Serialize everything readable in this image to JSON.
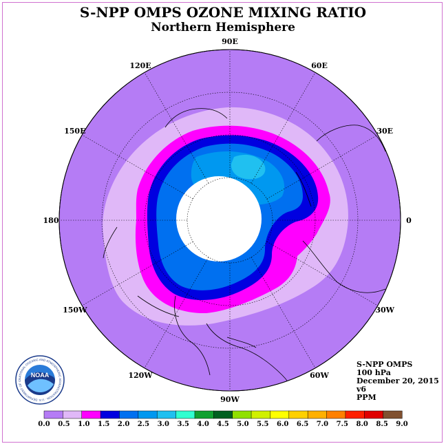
{
  "title": "S-NPP OMPS OZONE MIXING RATIO",
  "subtitle": "Northern Hemisphere",
  "longitude_labels": [
    {
      "text": "90E",
      "lon": 90
    },
    {
      "text": "60E",
      "lon": 60
    },
    {
      "text": "30E",
      "lon": 30
    },
    {
      "text": "0",
      "lon": 0
    },
    {
      "text": "30W",
      "lon": -30
    },
    {
      "text": "60W",
      "lon": -60
    },
    {
      "text": "90W",
      "lon": -90
    },
    {
      "text": "120W",
      "lon": -120
    },
    {
      "text": "150W",
      "lon": -150
    },
    {
      "text": "180",
      "lon": 180
    },
    {
      "text": "150E",
      "lon": 150
    },
    {
      "text": "120E",
      "lon": 120
    }
  ],
  "info": {
    "instrument": "S-NPP OMPS",
    "level": "100 hPa",
    "date": "December 20, 2015",
    "version": "v6",
    "units": "PPM"
  },
  "colorbar": {
    "labels": [
      "0.0",
      "0.5",
      "1.0",
      "1.5",
      "2.0",
      "2.5",
      "3.0",
      "3.5",
      "4.0",
      "4.5",
      "5.0",
      "5.5",
      "6.0",
      "6.5",
      "7.0",
      "7.5",
      "8.0",
      "8.5",
      "9.0"
    ],
    "colors": [
      "#b57cf5",
      "#e0b8f8",
      "#ff00ff",
      "#0000e0",
      "#0070f0",
      "#0098f0",
      "#20c0f0",
      "#30ffd0",
      "#10a030",
      "#006020",
      "#90e000",
      "#d0f000",
      "#ffff00",
      "#ffd000",
      "#ffb000",
      "#ff8000",
      "#ff2000",
      "#e00000",
      "#805030"
    ]
  },
  "logo": {
    "text": "NOAA",
    "ring_text": "NATIONAL OCEANIC AND ATMOSPHERIC ADMINISTRATION · U.S. DEPARTMENT OF COMMERCE"
  }
}
